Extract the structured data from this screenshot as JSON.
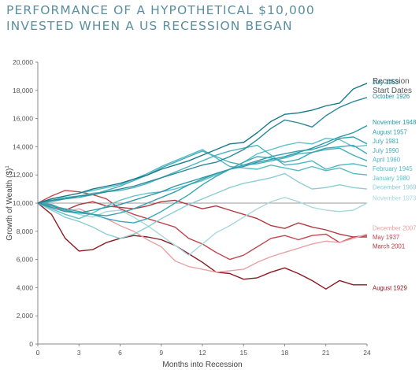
{
  "title_line1": "PERFORMANCE OF A HYPOTHETICAL $10,000",
  "title_line2": "INVESTED WHEN A US RECESSION BEGAN",
  "chart_data": {
    "type": "line",
    "xlabel": "Months into Recession",
    "ylabel": "Growth of Wealth ($)",
    "ylabel_sup": "1",
    "legend_title_line1": "Recession",
    "legend_title_line2": "Start Dates",
    "xlim": [
      0,
      24
    ],
    "ylim": [
      0,
      20000
    ],
    "x_ticks": [
      0,
      3,
      6,
      9,
      12,
      15,
      18,
      21,
      24
    ],
    "y_ticks": [
      0,
      2000,
      4000,
      6000,
      8000,
      10000,
      12000,
      14000,
      16000,
      18000,
      20000
    ],
    "y_tick_labels": [
      "0",
      "2,000",
      "4,000",
      "6,000",
      "8,000",
      "10,000",
      "12,000",
      "14,000",
      "16,000",
      "18,000",
      "20,000"
    ],
    "baseline": 10000,
    "x": [
      0,
      1,
      2,
      3,
      4,
      5,
      6,
      7,
      8,
      9,
      10,
      11,
      12,
      13,
      14,
      15,
      16,
      17,
      18,
      19,
      20,
      21,
      22,
      23,
      24
    ],
    "series": [
      {
        "name": "July 1953",
        "color": "#1a7a8c",
        "label_y": 18600,
        "values": [
          10000,
          10300,
          10500,
          10700,
          11000,
          11200,
          11400,
          11700,
          12000,
          12400,
          12700,
          13000,
          13400,
          13800,
          14200,
          14300,
          15000,
          15800,
          16300,
          16400,
          16600,
          16900,
          17100,
          18100,
          18500
        ]
      },
      {
        "name": "October 1926",
        "color": "#2c8a9a",
        "label_y": 17600,
        "values": [
          10000,
          10200,
          10300,
          10500,
          10600,
          10800,
          11000,
          11200,
          11500,
          11800,
          12100,
          12400,
          12700,
          12900,
          13300,
          13800,
          14500,
          15300,
          15900,
          15700,
          15400,
          16200,
          16800,
          17200,
          17500
        ]
      },
      {
        "name": "November 1948",
        "color": "#2e97a8",
        "label_y": 15750,
        "values": [
          10000,
          9700,
          9400,
          9300,
          9500,
          9700,
          9900,
          10200,
          10500,
          10800,
          11200,
          11500,
          11800,
          12100,
          12400,
          12600,
          12900,
          13100,
          13300,
          13600,
          13900,
          14300,
          14700,
          15000,
          15500
        ]
      },
      {
        "name": "August 1957",
        "color": "#35a0ae",
        "label_y": 15050,
        "values": [
          10000,
          9900,
          9500,
          9300,
          9200,
          9100,
          9300,
          9600,
          10000,
          10400,
          10800,
          11300,
          11700,
          12100,
          12400,
          12700,
          13000,
          13300,
          13500,
          13700,
          13800,
          14100,
          14600,
          14700,
          14200
        ]
      },
      {
        "name": "July 1981",
        "color": "#3ca7b4",
        "label_y": 14400,
        "values": [
          10000,
          9800,
          9600,
          9400,
          9200,
          8900,
          8700,
          8600,
          8900,
          9400,
          10000,
          10600,
          11300,
          11900,
          12400,
          12900,
          13300,
          13200,
          12900,
          13100,
          13600,
          13900,
          14000,
          14100,
          13500
        ]
      },
      {
        "name": "July 1990",
        "color": "#44aeba",
        "label_y": 13750,
        "values": [
          10000,
          10100,
          10300,
          10400,
          10600,
          10900,
          11200,
          11600,
          12000,
          12500,
          12900,
          13300,
          13700,
          13300,
          12900,
          12700,
          12800,
          13000,
          13200,
          13500,
          13600,
          13800,
          13900,
          13400,
          13000
        ]
      },
      {
        "name": "April 1960",
        "color": "#4db4bf",
        "label_y": 13100,
        "values": [
          10000,
          10200,
          10400,
          10500,
          10700,
          10800,
          10900,
          11100,
          11400,
          11800,
          12200,
          12600,
          13000,
          13400,
          13700,
          13900,
          14100,
          13400,
          12700,
          12800,
          13000,
          12400,
          12700,
          12800,
          12600
        ]
      },
      {
        "name": "February 1945",
        "color": "#55bac4",
        "label_y": 12450,
        "values": [
          10000,
          10300,
          10500,
          10700,
          10900,
          11100,
          11300,
          11700,
          12100,
          12600,
          13000,
          13400,
          13800,
          13200,
          12600,
          12500,
          12400,
          12700,
          12500,
          12300,
          12600,
          12300,
          12500,
          12100,
          12000
        ]
      },
      {
        "name": "January 1980",
        "color": "#5fc0c9",
        "label_y": 11800,
        "values": [
          10000,
          9600,
          9200,
          8900,
          9300,
          9800,
          10200,
          10500,
          10700,
          10800,
          11000,
          11300,
          11600,
          12000,
          12400,
          12900,
          13500,
          13800,
          14100,
          14300,
          14200,
          14600,
          14500,
          14000,
          14100
        ]
      },
      {
        "name": "December 1969",
        "color": "#8ccdd4",
        "label_y": 11150,
        "values": [
          10000,
          9500,
          9000,
          8700,
          8300,
          7800,
          7500,
          7800,
          8300,
          8900,
          9400,
          9900,
          10300,
          10700,
          11100,
          11400,
          11600,
          11800,
          12100,
          11500,
          11000,
          11100,
          11300,
          11100,
          11000
        ]
      },
      {
        "name": "November 1973",
        "color": "#a8d9de",
        "label_y": 10350,
        "values": [
          10000,
          9900,
          9500,
          9200,
          9000,
          9400,
          9500,
          9000,
          8400,
          7700,
          7000,
          6300,
          7100,
          7900,
          8400,
          9000,
          9600,
          10100,
          10400,
          10100,
          9700,
          9500,
          9400,
          9500,
          10000
        ]
      },
      {
        "name": "December 2007",
        "color": "#e8a2a4",
        "label_y": 8250,
        "values": [
          10000,
          9700,
          9400,
          9600,
          9200,
          8900,
          8400,
          8000,
          7400,
          6900,
          5900,
          5500,
          5300,
          5100,
          5200,
          5300,
          5800,
          6200,
          6500,
          6800,
          7100,
          7300,
          7200,
          7500,
          7800
        ]
      },
      {
        "name": "May 1937",
        "color": "#c1484f",
        "label_y": 7600,
        "values": [
          10000,
          10500,
          10900,
          10800,
          10600,
          10300,
          9600,
          9200,
          8900,
          8600,
          8300,
          7500,
          7100,
          6500,
          6000,
          6300,
          6900,
          7500,
          7700,
          7400,
          7700,
          7800,
          7200,
          7600,
          7700
        ]
      },
      {
        "name": "March 2001",
        "color": "#b03a40",
        "label_y": 6950,
        "values": [
          10000,
          9800,
          9500,
          9900,
          10100,
          9800,
          9700,
          9600,
          9800,
          10100,
          10200,
          9900,
          9600,
          9800,
          9500,
          9200,
          8900,
          8400,
          8200,
          8600,
          8300,
          8100,
          7800,
          7600,
          7600
        ]
      },
      {
        "name": "August 1929",
        "color": "#8b1a22",
        "label_y": 4000,
        "values": [
          10000,
          9200,
          7500,
          6600,
          6700,
          7200,
          7500,
          7700,
          7600,
          7400,
          7000,
          6400,
          5800,
          5100,
          5000,
          4600,
          4700,
          5100,
          5400,
          5000,
          4500,
          3900,
          4500,
          4200,
          4200
        ]
      }
    ]
  }
}
